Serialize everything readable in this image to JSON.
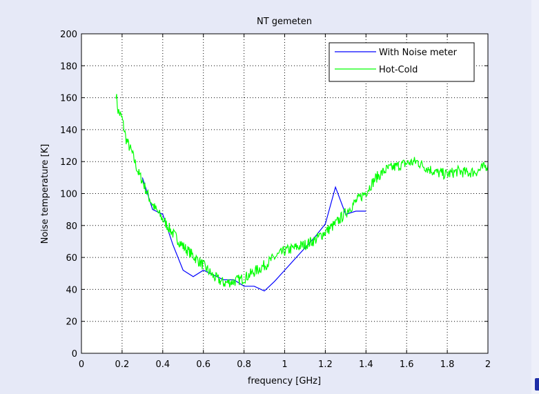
{
  "chart_data": {
    "type": "line",
    "title": "NT gemeten",
    "xlabel": "frequency [GHz]",
    "ylabel": "Noise temperature [K]",
    "xlim": [
      0,
      2
    ],
    "ylim": [
      0,
      200
    ],
    "xticks": [
      0,
      0.2,
      0.4,
      0.6,
      0.8,
      1,
      1.2,
      1.4,
      1.6,
      1.8,
      2
    ],
    "xtick_labels": [
      "0",
      "0.2",
      "0.4",
      "0.6",
      "0.8",
      "1",
      "1.2",
      "1.4",
      "1.6",
      "1.8",
      "2"
    ],
    "yticks": [
      0,
      20,
      40,
      60,
      80,
      100,
      120,
      140,
      160,
      180,
      200
    ],
    "ytick_labels": [
      "0",
      "20",
      "40",
      "60",
      "80",
      "100",
      "120",
      "140",
      "160",
      "180",
      "200"
    ],
    "grid": true,
    "legend_position": "top-right",
    "series": [
      {
        "name": "With Noise meter",
        "color": "#0000ff",
        "x": [
          0.3,
          0.35,
          0.4,
          0.45,
          0.5,
          0.55,
          0.6,
          0.65,
          0.7,
          0.75,
          0.8,
          0.85,
          0.9,
          0.95,
          1.0,
          1.05,
          1.1,
          1.15,
          1.2,
          1.25,
          1.3,
          1.35,
          1.4
        ],
        "y": [
          110,
          90,
          87,
          68,
          52,
          48,
          52,
          49,
          46,
          46,
          42,
          42,
          39,
          45,
          52,
          59,
          66,
          73,
          81,
          104,
          87,
          89,
          89
        ]
      },
      {
        "name": "Hot-Cold",
        "color": "#00ff00",
        "x": [
          0.17,
          0.18,
          0.2,
          0.22,
          0.25,
          0.28,
          0.3,
          0.33,
          0.36,
          0.4,
          0.45,
          0.5,
          0.55,
          0.6,
          0.65,
          0.7,
          0.75,
          0.8,
          0.85,
          0.9,
          0.95,
          1.0,
          1.05,
          1.1,
          1.15,
          1.2,
          1.25,
          1.3,
          1.35,
          1.4,
          1.45,
          1.5,
          1.55,
          1.6,
          1.65,
          1.7,
          1.75,
          1.8,
          1.85,
          1.9,
          1.95,
          2.0
        ],
        "y": [
          163,
          152,
          147,
          134,
          125,
          113,
          108,
          98,
          91,
          84,
          75,
          67,
          61,
          55,
          48,
          44,
          45,
          47,
          51,
          55,
          60,
          64,
          66,
          68,
          71,
          76,
          81,
          88,
          95,
          101,
          110,
          115,
          117,
          119,
          120,
          116,
          113,
          112,
          114,
          113,
          114,
          118
        ]
      }
    ]
  }
}
